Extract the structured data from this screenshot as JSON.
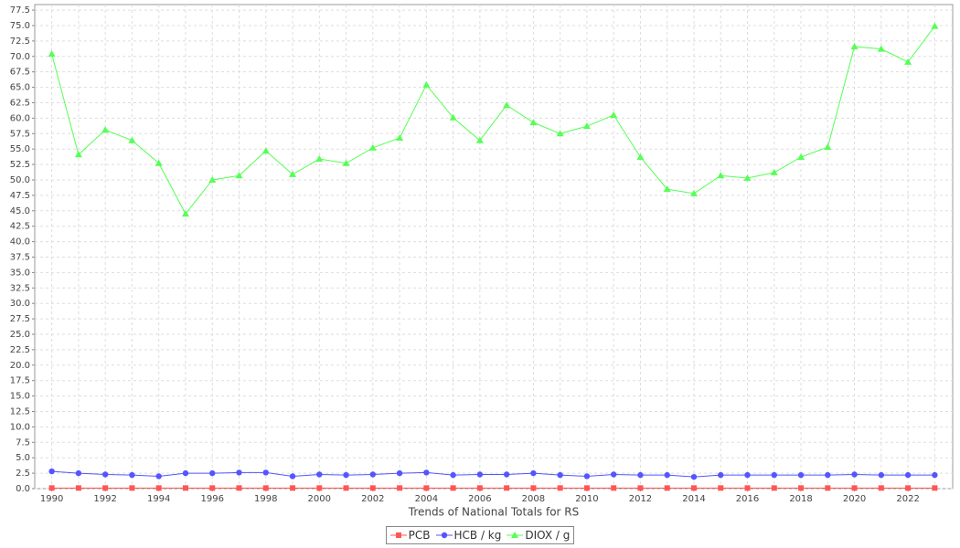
{
  "chart_data": {
    "type": "line",
    "x_label": "Trends of National Totals for RS",
    "categories": [
      "1990",
      null,
      "1992",
      null,
      "1994",
      null,
      "1996",
      null,
      "1998",
      null,
      "2000",
      null,
      "2002",
      null,
      "2004",
      null,
      "2006",
      null,
      "2008",
      null,
      "2010",
      null,
      "2012",
      null,
      "2014",
      null,
      "2016",
      null,
      "2018",
      null,
      "2020",
      null,
      "2022",
      null
    ],
    "series": [
      {
        "name": "PCB",
        "color": "#ff5555",
        "shape": "square",
        "values": [
          0.1,
          0.1,
          0.1,
          0.1,
          0.1,
          0.1,
          0.1,
          0.1,
          0.1,
          0.1,
          0.1,
          0.1,
          0.1,
          0.1,
          0.1,
          0.1,
          0.1,
          0.1,
          0.1,
          0.1,
          0.1,
          0.1,
          0.1,
          0.1,
          0.1,
          0.1,
          0.1,
          0.1,
          0.1,
          0.1,
          0.1,
          0.1,
          0.1,
          0.1
        ]
      },
      {
        "name": "HCB / kg",
        "color": "#5555ff",
        "shape": "circle",
        "values": [
          2.8,
          2.5,
          2.3,
          2.2,
          2.0,
          2.5,
          2.5,
          2.6,
          2.6,
          2.0,
          2.3,
          2.2,
          2.3,
          2.5,
          2.6,
          2.2,
          2.3,
          2.3,
          2.5,
          2.2,
          2.0,
          2.3,
          2.2,
          2.2,
          1.9,
          2.2,
          2.2,
          2.2,
          2.2,
          2.2,
          2.3,
          2.2,
          2.2,
          2.2
        ]
      },
      {
        "name": "DIOX / g",
        "color": "#55ff55",
        "shape": "triangle",
        "values": [
          70.4,
          54.1,
          58.1,
          56.4,
          52.7,
          44.5,
          50.0,
          50.7,
          54.7,
          50.9,
          53.4,
          52.7,
          55.2,
          56.8,
          65.4,
          60.1,
          56.4,
          62.1,
          59.3,
          57.5,
          58.7,
          60.5,
          53.7,
          48.5,
          47.8,
          50.7,
          50.3,
          51.2,
          53.7,
          55.3,
          71.6,
          71.2,
          69.1,
          74.9
        ]
      }
    ],
    "ylim": [
      0,
      78.4
    ],
    "yticks": [
      {
        "value": 0,
        "label": "0.0"
      },
      2.5,
      {
        "value": 5,
        "label": "5.0"
      },
      7.5,
      {
        "value": 10,
        "label": "10.0"
      },
      12.5,
      {
        "value": 15,
        "label": "15.0"
      },
      17.5,
      {
        "value": 20,
        "label": "20.0"
      },
      22.5,
      {
        "value": 25,
        "label": "25.0"
      },
      27.5,
      {
        "value": 30,
        "label": "30.0"
      },
      32.5,
      {
        "value": 35,
        "label": "35.0"
      },
      37.5,
      {
        "value": 40,
        "label": "40.0"
      },
      42.5,
      {
        "value": 45,
        "label": "45.0"
      },
      47.5,
      {
        "value": 50,
        "label": "50.0"
      },
      52.5,
      {
        "value": 55,
        "label": "55.0"
      },
      57.5,
      {
        "value": 60,
        "label": "60.0"
      },
      62.5,
      {
        "value": 65,
        "label": "65.0"
      },
      67.5,
      {
        "value": 70,
        "label": "70.0"
      },
      72.5,
      {
        "value": 75,
        "label": "75.0"
      },
      77.5
    ],
    "grid": true
  }
}
